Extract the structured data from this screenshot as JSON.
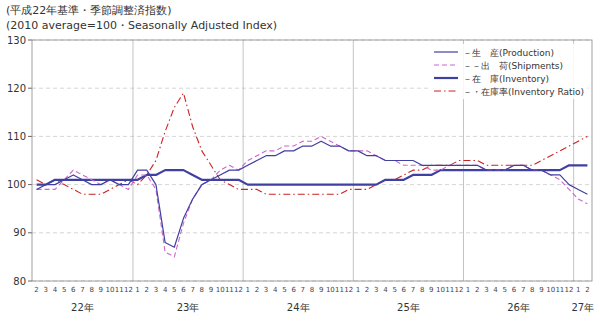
{
  "chart_data": {
    "type": "line",
    "title": "(平成22年基準・季節調整済指数)",
    "subtitle": "(2010 average=100・Seasonally Adjusted Index)",
    "categories": [
      "2",
      "3",
      "4",
      "5",
      "6",
      "7",
      "8",
      "9",
      "10",
      "11",
      "12",
      "1",
      "2",
      "3",
      "4",
      "5",
      "6",
      "7",
      "8",
      "9",
      "10",
      "11",
      "12",
      "1",
      "2",
      "3",
      "4",
      "5",
      "6",
      "7",
      "8",
      "9",
      "10",
      "11",
      "12",
      "1",
      "2",
      "3",
      "4",
      "5",
      "6",
      "7",
      "8",
      "9",
      "10",
      "11",
      "12",
      "1",
      "2",
      "3",
      "4",
      "5",
      "6",
      "7",
      "8",
      "9",
      "10",
      "11",
      "12",
      "1",
      "2"
    ],
    "annotations": [
      "22年",
      "23年",
      "24年",
      "25年",
      "26年",
      "27年"
    ],
    "series": [
      {
        "name": "－生　産(Production)",
        "color": "#4040a0",
        "line_style": "solid",
        "values": [
          99,
          100,
          100,
          101,
          102,
          101,
          100,
          100,
          101,
          100,
          100,
          103,
          103,
          100,
          88,
          87,
          93,
          97,
          100,
          101,
          102,
          103,
          103,
          104,
          105,
          106,
          106,
          107,
          107,
          108,
          108,
          109,
          108,
          108,
          107,
          107,
          106,
          106,
          105,
          105,
          105,
          105,
          104,
          104,
          104,
          104,
          104,
          104,
          104,
          103,
          103,
          103,
          104,
          104,
          103,
          103,
          102,
          102,
          100,
          99,
          98
        ]
      },
      {
        "name": "－－出　荷(Shipments)",
        "color": "#cc66cc",
        "line_style": "dashed",
        "values": [
          99,
          99,
          99,
          101,
          103,
          102,
          101,
          100,
          101,
          100,
          99,
          102,
          102,
          99,
          86,
          85,
          92,
          97,
          100,
          101,
          103,
          104,
          103,
          105,
          106,
          107,
          107,
          108,
          108,
          109,
          109,
          110,
          109,
          108,
          107,
          107,
          107,
          106,
          105,
          105,
          104,
          104,
          104,
          103,
          103,
          104,
          104,
          104,
          104,
          103,
          103,
          103,
          104,
          104,
          103,
          103,
          102,
          101,
          99,
          97,
          96
        ]
      },
      {
        "name": "－在　庫(Inventory)",
        "color": "#4040a0",
        "line_style": "solid",
        "values": [
          100,
          100,
          101,
          101,
          101,
          101,
          101,
          101,
          101,
          101,
          101,
          101,
          102,
          102,
          103,
          103,
          103,
          102,
          101,
          101,
          101,
          101,
          101,
          100,
          100,
          100,
          100,
          100,
          100,
          100,
          100,
          100,
          100,
          100,
          100,
          100,
          100,
          100,
          101,
          101,
          101,
          102,
          102,
          102,
          103,
          103,
          103,
          103,
          103,
          103,
          103,
          103,
          103,
          103,
          103,
          103,
          103,
          103,
          104,
          104,
          104
        ]
      },
      {
        "name": "－・在庫率(Inventory Ratio)",
        "color": "#cc2222",
        "line_style": "dashdot",
        "values": [
          101,
          100,
          101,
          100,
          99,
          98,
          98,
          98,
          99,
          100,
          101,
          100,
          102,
          105,
          111,
          116,
          119,
          112,
          107,
          104,
          101,
          100,
          99,
          99,
          99,
          98,
          98,
          98,
          98,
          98,
          98,
          98,
          98,
          98,
          99,
          99,
          99,
          100,
          101,
          101,
          102,
          103,
          103,
          104,
          104,
          104,
          105,
          105,
          105,
          104,
          104,
          104,
          104,
          104,
          104,
          105,
          106,
          107,
          108,
          109,
          110
        ]
      }
    ],
    "ylim": [
      80,
      130
    ],
    "yticks": [
      80,
      90,
      100,
      110,
      120,
      130
    ],
    "grid": true,
    "legend": "upper right"
  }
}
